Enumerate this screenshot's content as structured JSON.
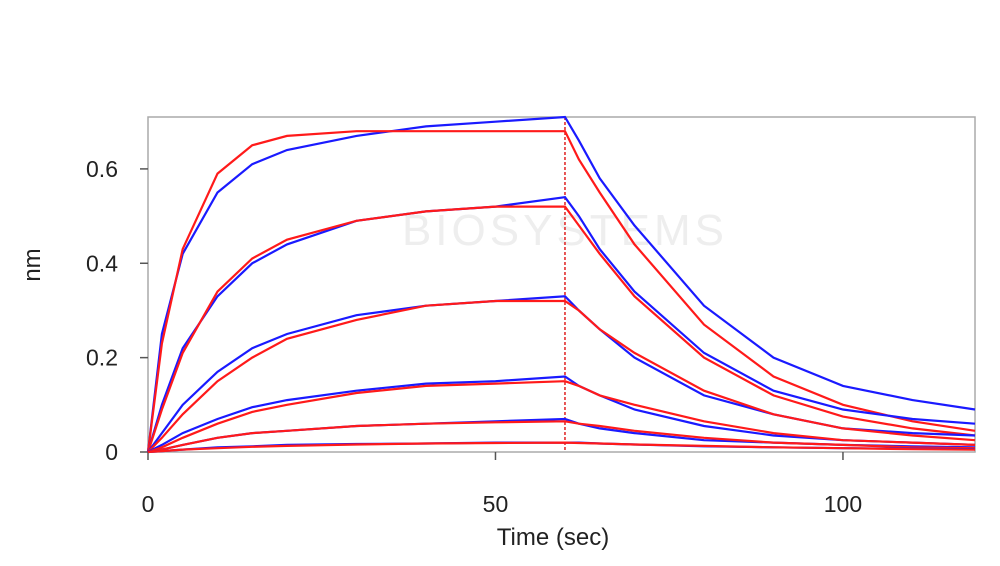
{
  "chart_data": {
    "type": "line",
    "watermark": "BIOSYSTEMS",
    "xlabel": "Time (sec)",
    "ylabel": "nm",
    "xlim": [
      0,
      119
    ],
    "ylim": [
      0,
      0.71
    ],
    "xticks": [
      0,
      50,
      100
    ],
    "yticks": [
      0,
      0.2,
      0.4,
      0.6
    ],
    "vline": 60,
    "vline_color": "#e02020",
    "x": [
      0,
      2,
      5,
      10,
      15,
      20,
      30,
      40,
      50,
      60,
      62,
      65,
      70,
      80,
      90,
      100,
      110,
      119
    ],
    "series": [
      {
        "color": "#1a1aff",
        "values": [
          0,
          0.25,
          0.42,
          0.55,
          0.61,
          0.64,
          0.67,
          0.69,
          0.7,
          0.71,
          0.66,
          0.58,
          0.48,
          0.31,
          0.2,
          0.14,
          0.11,
          0.09
        ]
      },
      {
        "color": "#ff1a1a",
        "values": [
          0,
          0.23,
          0.43,
          0.59,
          0.65,
          0.67,
          0.68,
          0.68,
          0.68,
          0.68,
          0.62,
          0.55,
          0.44,
          0.27,
          0.16,
          0.1,
          0.065,
          0.045
        ]
      },
      {
        "color": "#1a1aff",
        "values": [
          0,
          0.1,
          0.22,
          0.33,
          0.4,
          0.44,
          0.49,
          0.51,
          0.52,
          0.54,
          0.5,
          0.43,
          0.34,
          0.21,
          0.13,
          0.09,
          0.07,
          0.06
        ]
      },
      {
        "color": "#ff1a1a",
        "values": [
          0,
          0.09,
          0.21,
          0.34,
          0.41,
          0.45,
          0.49,
          0.51,
          0.52,
          0.52,
          0.48,
          0.42,
          0.33,
          0.2,
          0.12,
          0.075,
          0.05,
          0.035
        ]
      },
      {
        "color": "#1a1aff",
        "values": [
          0,
          0.04,
          0.1,
          0.17,
          0.22,
          0.25,
          0.29,
          0.31,
          0.32,
          0.33,
          0.3,
          0.26,
          0.2,
          0.12,
          0.08,
          0.05,
          0.04,
          0.035
        ]
      },
      {
        "color": "#ff1a1a",
        "values": [
          0,
          0.03,
          0.08,
          0.15,
          0.2,
          0.24,
          0.28,
          0.31,
          0.32,
          0.32,
          0.3,
          0.26,
          0.21,
          0.13,
          0.08,
          0.05,
          0.035,
          0.025
        ]
      },
      {
        "color": "#1a1aff",
        "values": [
          0,
          0.015,
          0.04,
          0.07,
          0.095,
          0.11,
          0.13,
          0.145,
          0.15,
          0.16,
          0.14,
          0.12,
          0.09,
          0.055,
          0.035,
          0.025,
          0.02,
          0.015
        ]
      },
      {
        "color": "#ff1a1a",
        "values": [
          0,
          0.01,
          0.03,
          0.06,
          0.085,
          0.1,
          0.125,
          0.14,
          0.145,
          0.15,
          0.14,
          0.12,
          0.1,
          0.065,
          0.04,
          0.025,
          0.02,
          0.015
        ]
      },
      {
        "color": "#1a1aff",
        "values": [
          0,
          0.005,
          0.015,
          0.03,
          0.04,
          0.045,
          0.055,
          0.06,
          0.065,
          0.07,
          0.06,
          0.05,
          0.04,
          0.025,
          0.02,
          0.015,
          0.012,
          0.01
        ]
      },
      {
        "color": "#ff1a1a",
        "values": [
          0,
          0.005,
          0.015,
          0.03,
          0.04,
          0.045,
          0.055,
          0.06,
          0.063,
          0.065,
          0.06,
          0.055,
          0.045,
          0.03,
          0.02,
          0.015,
          0.01,
          0.008
        ]
      },
      {
        "color": "#1a1aff",
        "values": [
          0,
          0.002,
          0.005,
          0.01,
          0.012,
          0.015,
          0.017,
          0.018,
          0.02,
          0.02,
          0.02,
          0.018,
          0.016,
          0.012,
          0.01,
          0.008,
          0.007,
          0.006
        ]
      },
      {
        "color": "#ff1a1a",
        "values": [
          0,
          0.002,
          0.005,
          0.008,
          0.011,
          0.013,
          0.016,
          0.018,
          0.019,
          0.02,
          0.019,
          0.018,
          0.016,
          0.013,
          0.01,
          0.008,
          0.006,
          0.005
        ]
      }
    ]
  }
}
